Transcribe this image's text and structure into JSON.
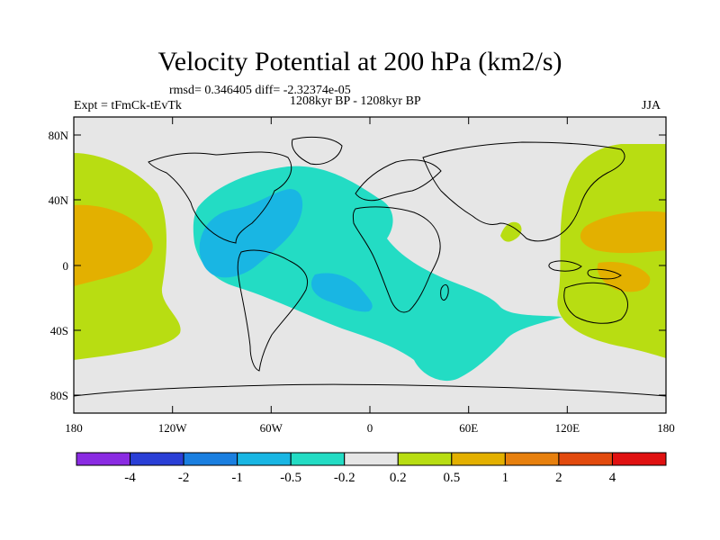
{
  "title": "Velocity Potential at 200 hPa (km2/s)",
  "stats_line": "rmsd= 0.346405 diff= -2.32374e-05",
  "expt_label": "Expt = tFmCk-tEvTk",
  "period_label": "1208kyr BP - 1208kyr BP",
  "season_label": "JJA",
  "lat_ticks": [
    "80N",
    "40N",
    "0",
    "40S",
    "80S"
  ],
  "lon_ticks": [
    "180",
    "120W",
    "60W",
    "0",
    "60E",
    "120E",
    "180"
  ],
  "colorbar": {
    "colors": [
      "#8a2be2",
      "#2a3fd6",
      "#1a7fe0",
      "#19b6e3",
      "#23dcc4",
      "#e6e6e6",
      "#b8dd12",
      "#e3b000",
      "#e7800e",
      "#e24a0e",
      "#e01111"
    ],
    "labels": [
      "-4",
      "-2",
      "-1",
      "-0.5",
      "-0.2",
      "0.2",
      "0.5",
      "1",
      "2",
      "4"
    ]
  },
  "palette": {
    "neutral": "#e6e6e6",
    "neg_light": "#23dcc4",
    "neg_mid": "#19b6e3",
    "pos_light": "#b8dd12",
    "pos_mid": "#e3b000",
    "coast": "#000000"
  }
}
